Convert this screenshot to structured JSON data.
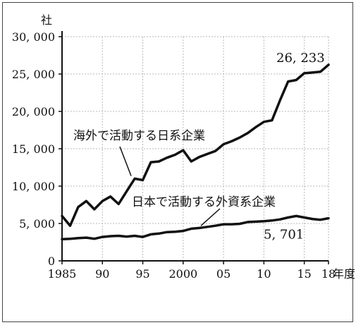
{
  "chart_data": {
    "type": "line",
    "title": "",
    "ylabel": "社",
    "xlabel": "年度",
    "ylim": [
      0,
      30000
    ],
    "xlim": [
      1985,
      2018
    ],
    "grid": true,
    "y_ticks": [
      {
        "value": 0,
        "label": "0"
      },
      {
        "value": 5000,
        "label": "5, 000"
      },
      {
        "value": 10000,
        "label": "10, 000"
      },
      {
        "value": 15000,
        "label": "15, 000"
      },
      {
        "value": 20000,
        "label": "20, 000"
      },
      {
        "value": 25000,
        "label": "25, 000"
      },
      {
        "value": 30000,
        "label": "30, 000"
      }
    ],
    "x_ticks": [
      {
        "value": 1985,
        "label": "1985"
      },
      {
        "value": 1990,
        "label": "90"
      },
      {
        "value": 1995,
        "label": "95"
      },
      {
        "value": 2000,
        "label": "2000"
      },
      {
        "value": 2005,
        "label": "05"
      },
      {
        "value": 2010,
        "label": "10"
      },
      {
        "value": 2015,
        "label": "15"
      },
      {
        "value": 2018,
        "label": "18"
      }
    ],
    "x": [
      1985,
      1986,
      1987,
      1988,
      1989,
      1990,
      1991,
      1992,
      1993,
      1994,
      1995,
      1996,
      1997,
      1998,
      1999,
      2000,
      2001,
      2002,
      2003,
      2004,
      2005,
      2006,
      2007,
      2008,
      2009,
      2010,
      2011,
      2012,
      2013,
      2014,
      2015,
      2016,
      2017,
      2018
    ],
    "series": [
      {
        "name": "海外で活動する日系企業",
        "values": [
          6000,
          4700,
          7200,
          8000,
          6900,
          8000,
          8600,
          7600,
          9300,
          11000,
          10800,
          13200,
          13300,
          13800,
          14200,
          14800,
          13300,
          13900,
          14300,
          14700,
          15600,
          16000,
          16500,
          17100,
          17900,
          18600,
          18800,
          21500,
          24000,
          24200,
          25100,
          25200,
          25300,
          26233
        ],
        "end_label": "26, 233"
      },
      {
        "name": "日本で活動する外資系企業",
        "values": [
          2900,
          2950,
          3050,
          3100,
          2950,
          3200,
          3300,
          3350,
          3250,
          3350,
          3200,
          3550,
          3650,
          3850,
          3900,
          4000,
          4300,
          4400,
          4550,
          4700,
          4900,
          4900,
          4950,
          5200,
          5250,
          5300,
          5400,
          5550,
          5800,
          6000,
          5800,
          5600,
          5500,
          5701
        ],
        "end_label": "5, 701"
      }
    ]
  }
}
